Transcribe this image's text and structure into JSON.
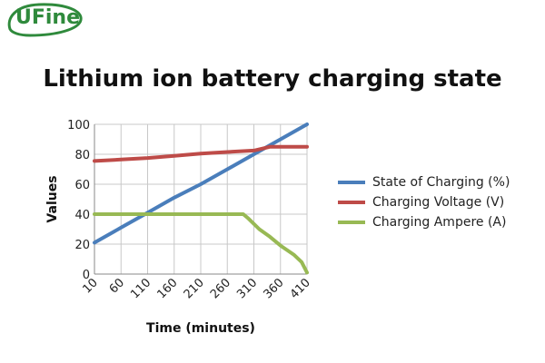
{
  "logo": {
    "text": "UFine",
    "color": "#2f8a3c"
  },
  "chart_data": {
    "type": "line",
    "title": "Lithium ion battery charging state",
    "xlabel": "Time (minutes)",
    "ylabel": "Values",
    "xlim": [
      10,
      410
    ],
    "ylim": [
      0,
      100
    ],
    "x_ticks": [
      10,
      60,
      110,
      160,
      210,
      260,
      310,
      360,
      410
    ],
    "y_ticks": [
      0,
      20,
      40,
      60,
      80,
      100
    ],
    "grid": true,
    "legend_position": "right",
    "series": [
      {
        "name": "State of Charging (%)",
        "color": "#4a7ebb",
        "x": [
          10,
          60,
          110,
          160,
          210,
          260,
          310,
          360,
          410
        ],
        "y": [
          21,
          31,
          41,
          51,
          60,
          70,
          80,
          90,
          100
        ]
      },
      {
        "name": "Charging Voltage (V)",
        "color": "#be4b48",
        "x": [
          10,
          60,
          110,
          160,
          210,
          260,
          310,
          340,
          410
        ],
        "y": [
          75.5,
          76.5,
          77.5,
          79,
          80.5,
          81.5,
          82.5,
          85,
          85
        ]
      },
      {
        "name": "Charging Ampere (A)",
        "color": "#98b954",
        "x": [
          10,
          60,
          110,
          160,
          210,
          260,
          290,
          300,
          320,
          340,
          360,
          385,
          400,
          410
        ],
        "y": [
          40,
          40,
          40,
          40,
          40,
          40,
          40,
          37,
          30,
          25,
          19,
          13,
          8,
          1
        ]
      }
    ]
  }
}
